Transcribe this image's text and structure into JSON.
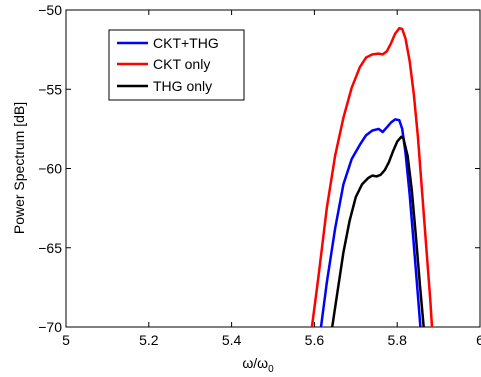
{
  "chart_data": {
    "type": "line",
    "title": "",
    "xlabel": "ω/ω",
    "xlabel_sub": "0",
    "ylabel": "Power Spectrum [dB]",
    "xlim": [
      5,
      6
    ],
    "ylim": [
      -70,
      -50
    ],
    "x_ticks": [
      5,
      5.2,
      5.4,
      5.6,
      5.8,
      6
    ],
    "x_tick_labels": [
      "5",
      "5.2",
      "5.4",
      "5.6",
      "5.8",
      "6"
    ],
    "y_ticks": [
      -70,
      -65,
      -60,
      -55,
      -50
    ],
    "y_tick_labels": [
      "−70",
      "−65",
      "−60",
      "−55",
      "−50"
    ],
    "grid": false,
    "legend_position": "top-left",
    "series": [
      {
        "name": "CKT+THG",
        "color": "#0000ff",
        "points": [
          [
            5.616,
            -70
          ],
          [
            5.63,
            -67.2
          ],
          [
            5.65,
            -63.8
          ],
          [
            5.67,
            -61.0
          ],
          [
            5.69,
            -59.4
          ],
          [
            5.71,
            -58.5
          ],
          [
            5.725,
            -57.9
          ],
          [
            5.74,
            -57.6
          ],
          [
            5.755,
            -57.5
          ],
          [
            5.765,
            -57.7
          ],
          [
            5.775,
            -57.4
          ],
          [
            5.785,
            -57.1
          ],
          [
            5.795,
            -56.9
          ],
          [
            5.805,
            -56.95
          ],
          [
            5.812,
            -57.5
          ],
          [
            5.82,
            -59.0
          ],
          [
            5.83,
            -61.6
          ],
          [
            5.84,
            -64.8
          ],
          [
            5.85,
            -68.0
          ],
          [
            5.856,
            -70
          ]
        ]
      },
      {
        "name": "CKT only",
        "color": "#ff0000",
        "points": [
          [
            5.594,
            -70
          ],
          [
            5.61,
            -66.8
          ],
          [
            5.63,
            -62.5
          ],
          [
            5.65,
            -59.2
          ],
          [
            5.67,
            -56.8
          ],
          [
            5.69,
            -54.9
          ],
          [
            5.71,
            -53.6
          ],
          [
            5.725,
            -53.0
          ],
          [
            5.74,
            -52.8
          ],
          [
            5.755,
            -52.75
          ],
          [
            5.765,
            -52.8
          ],
          [
            5.775,
            -52.6
          ],
          [
            5.785,
            -52.1
          ],
          [
            5.795,
            -51.5
          ],
          [
            5.805,
            -51.15
          ],
          [
            5.812,
            -51.2
          ],
          [
            5.82,
            -51.8
          ],
          [
            5.83,
            -53.2
          ],
          [
            5.84,
            -55.3
          ],
          [
            5.85,
            -58.0
          ],
          [
            5.86,
            -61.4
          ],
          [
            5.87,
            -64.9
          ],
          [
            5.88,
            -68.3
          ],
          [
            5.884,
            -70
          ]
        ]
      },
      {
        "name": "THG only",
        "color": "#000000",
        "points": [
          [
            5.643,
            -70
          ],
          [
            5.655,
            -67.9
          ],
          [
            5.67,
            -65.3
          ],
          [
            5.685,
            -63.3
          ],
          [
            5.7,
            -61.8
          ],
          [
            5.715,
            -61.0
          ],
          [
            5.73,
            -60.6
          ],
          [
            5.74,
            -60.45
          ],
          [
            5.75,
            -60.5
          ],
          [
            5.76,
            -60.4
          ],
          [
            5.77,
            -60.1
          ],
          [
            5.78,
            -59.6
          ],
          [
            5.79,
            -58.9
          ],
          [
            5.8,
            -58.3
          ],
          [
            5.81,
            -58.0
          ],
          [
            5.815,
            -58.1
          ],
          [
            5.825,
            -59.2
          ],
          [
            5.835,
            -61.3
          ],
          [
            5.845,
            -64.2
          ],
          [
            5.855,
            -67.4
          ],
          [
            5.864,
            -70
          ]
        ]
      }
    ]
  }
}
